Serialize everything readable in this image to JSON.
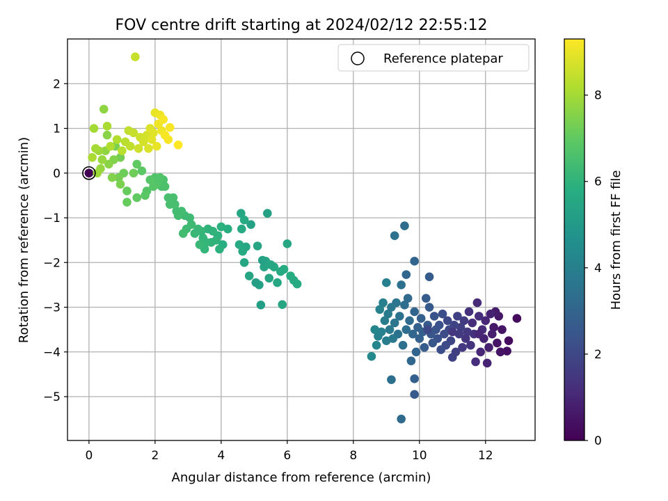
{
  "chart_data": {
    "type": "scatter",
    "title": "FOV centre drift starting at 2024/02/12 22:55:12",
    "xlabel": "Angular distance from reference (arcmin)",
    "ylabel": "Rotation from reference (arcmin)",
    "xlim": [
      -0.65,
      13.5
    ],
    "ylim": [
      -5.98,
      3.0
    ],
    "xticks": [
      0,
      2,
      4,
      6,
      8,
      10,
      12
    ],
    "yticks": [
      -5,
      -4,
      -3,
      -2,
      -1,
      0,
      1,
      2
    ],
    "grid": true,
    "legend": {
      "placement": "top-right",
      "entries": [
        "Reference platepar"
      ]
    },
    "colorbar": {
      "label": "Hours from first FF file",
      "range": [
        0,
        9.3
      ],
      "ticks": [
        0,
        2,
        4,
        6,
        8
      ],
      "colormap": "viridis"
    },
    "reference_point": {
      "x": 0,
      "y": 0
    },
    "point_columns": [
      "x",
      "y",
      "hours"
    ],
    "points": [
      [
        0.0,
        0.0,
        0.0
      ],
      [
        12.95,
        -3.25,
        0.3
      ],
      [
        12.7,
        -3.75,
        0.3
      ],
      [
        12.65,
        -3.98,
        0.4
      ],
      [
        12.5,
        -3.5,
        0.5
      ],
      [
        12.45,
        -4.0,
        0.5
      ],
      [
        12.4,
        -3.2,
        0.6
      ],
      [
        12.35,
        -3.8,
        0.5
      ],
      [
        12.3,
        -3.1,
        0.7
      ],
      [
        12.25,
        -3.45,
        0.6
      ],
      [
        12.2,
        -3.6,
        0.8
      ],
      [
        12.15,
        -3.15,
        0.9
      ],
      [
        12.1,
        -3.9,
        0.8
      ],
      [
        12.05,
        -4.25,
        0.9
      ],
      [
        12.0,
        -3.3,
        1.0
      ],
      [
        11.95,
        -3.7,
        0.9
      ],
      [
        11.9,
        -3.5,
        1.1
      ],
      [
        11.85,
        -4.0,
        1.0
      ],
      [
        11.8,
        -3.2,
        1.2
      ],
      [
        11.75,
        -2.9,
        1.1
      ],
      [
        11.7,
        -4.22,
        1.2
      ],
      [
        11.65,
        -3.6,
        1.3
      ],
      [
        11.6,
        -3.35,
        1.2
      ],
      [
        11.55,
        -3.85,
        1.4
      ],
      [
        11.5,
        -3.1,
        1.3
      ],
      [
        11.45,
        -3.55,
        1.5
      ],
      [
        11.4,
        -3.7,
        1.4
      ],
      [
        11.35,
        -3.3,
        1.6
      ],
      [
        11.3,
        -3.9,
        1.5
      ],
      [
        11.25,
        -3.45,
        1.7
      ],
      [
        11.2,
        -3.6,
        1.6
      ],
      [
        11.15,
        -3.2,
        1.8
      ],
      [
        11.1,
        -4.0,
        1.7
      ],
      [
        11.05,
        -3.4,
        1.9
      ],
      [
        11.0,
        -4.12,
        1.8
      ],
      [
        10.95,
        -3.75,
        1.9
      ],
      [
        10.9,
        -3.5,
        2.0
      ],
      [
        10.85,
        -3.3,
        2.0
      ],
      [
        10.8,
        -3.85,
        2.1
      ],
      [
        10.75,
        -3.6,
        2.1
      ],
      [
        10.7,
        -3.15,
        2.2
      ],
      [
        10.65,
        -3.95,
        2.2
      ],
      [
        10.6,
        -3.4,
        2.3
      ],
      [
        10.55,
        -3.7,
        2.3
      ],
      [
        10.5,
        -3.5,
        2.4
      ],
      [
        10.45,
        -3.2,
        2.4
      ],
      [
        10.4,
        -3.8,
        2.5
      ],
      [
        10.35,
        -3.6,
        2.5
      ],
      [
        10.3,
        -3.0,
        2.6
      ],
      [
        10.25,
        -3.4,
        2.6
      ],
      [
        10.2,
        -2.8,
        2.7
      ],
      [
        10.15,
        -3.9,
        2.7
      ],
      [
        10.1,
        -3.55,
        2.8
      ],
      [
        10.05,
        -3.25,
        2.8
      ],
      [
        10.0,
        -3.7,
        2.9
      ],
      [
        9.95,
        -3.45,
        2.9
      ],
      [
        9.9,
        -4.0,
        3.0
      ],
      [
        9.85,
        -3.1,
        3.0
      ],
      [
        9.8,
        -3.6,
        3.1
      ],
      [
        9.75,
        -4.2,
        3.1
      ],
      [
        9.7,
        -3.3,
        3.2
      ],
      [
        9.65,
        -2.8,
        3.2
      ],
      [
        9.6,
        -3.5,
        3.3
      ],
      [
        9.55,
        -2.95,
        3.3
      ],
      [
        9.5,
        -3.85,
        3.4
      ],
      [
        9.45,
        -2.5,
        3.4
      ],
      [
        9.4,
        -3.2,
        3.5
      ],
      [
        9.35,
        -3.6,
        3.5
      ],
      [
        9.3,
        -2.9,
        3.6
      ],
      [
        9.25,
        -3.35,
        3.6
      ],
      [
        9.2,
        -3.7,
        3.7
      ],
      [
        9.15,
        -3.0,
        3.7
      ],
      [
        9.1,
        -3.5,
        3.8
      ],
      [
        9.05,
        -3.15,
        3.8
      ],
      [
        9.0,
        -3.75,
        3.9
      ],
      [
        8.95,
        -3.3,
        3.9
      ],
      [
        8.9,
        -2.9,
        4.0
      ],
      [
        8.85,
        -3.55,
        4.0
      ],
      [
        8.8,
        -3.05,
        4.1
      ],
      [
        8.75,
        -3.65,
        4.1
      ],
      [
        8.7,
        -3.85,
        4.2
      ],
      [
        8.65,
        -3.5,
        4.2
      ],
      [
        8.55,
        -4.1,
        4.3
      ],
      [
        9.0,
        -2.45,
        4.0
      ],
      [
        9.25,
        -1.4,
        3.5
      ],
      [
        9.55,
        -1.18,
        3.3
      ],
      [
        9.85,
        -1.97,
        3.0
      ],
      [
        9.85,
        -4.6,
        2.8
      ],
      [
        9.85,
        -4.95,
        2.6
      ],
      [
        9.45,
        -5.5,
        3.2
      ],
      [
        9.15,
        -4.62,
        3.4
      ],
      [
        10.3,
        -2.32,
        2.7
      ],
      [
        9.6,
        -2.27,
        3.1
      ],
      [
        10.25,
        -3.5,
        2.0
      ],
      [
        11.0,
        -3.55,
        1.5
      ],
      [
        11.8,
        -3.6,
        1.0
      ],
      [
        6.3,
        -2.48,
        5.6
      ],
      [
        6.2,
        -2.4,
        5.6
      ],
      [
        6.1,
        -2.3,
        5.7
      ],
      [
        6.0,
        -1.58,
        5.5
      ],
      [
        5.9,
        -2.15,
        5.7
      ],
      [
        5.85,
        -2.94,
        5.4
      ],
      [
        5.8,
        -2.2,
        5.6
      ],
      [
        5.7,
        -2.45,
        5.5
      ],
      [
        5.6,
        -2.1,
        5.6
      ],
      [
        5.5,
        -2.05,
        5.5
      ],
      [
        5.45,
        -2.35,
        5.4
      ],
      [
        5.4,
        -0.9,
        5.3
      ],
      [
        5.35,
        -1.97,
        5.5
      ],
      [
        5.3,
        -2.1,
        5.4
      ],
      [
        5.25,
        -1.95,
        5.3
      ],
      [
        5.2,
        -2.95,
        5.2
      ],
      [
        5.15,
        -2.5,
        5.3
      ],
      [
        5.1,
        -1.63,
        5.4
      ],
      [
        5.05,
        -2.45,
        5.2
      ],
      [
        4.9,
        -1.15,
        5.3
      ],
      [
        4.85,
        -2.3,
        5.4
      ],
      [
        4.75,
        -1.65,
        5.5
      ],
      [
        4.7,
        -2.0,
        5.5
      ],
      [
        4.65,
        -1.75,
        5.6
      ],
      [
        4.6,
        -0.9,
        5.5
      ],
      [
        4.55,
        -1.6,
        5.6
      ],
      [
        4.62,
        -1.25,
        5.6
      ],
      [
        4.7,
        -1.05,
        5.6
      ],
      [
        4.2,
        -1.25,
        5.8
      ],
      [
        4.05,
        -1.6,
        5.8
      ],
      [
        4.0,
        -1.2,
        5.9
      ],
      [
        3.95,
        -1.7,
        5.9
      ],
      [
        3.9,
        -1.4,
        5.9
      ],
      [
        3.85,
        -1.5,
        6.0
      ],
      [
        3.75,
        -1.3,
        6.0
      ],
      [
        3.7,
        -1.55,
        6.0
      ],
      [
        3.6,
        -1.25,
        6.0
      ],
      [
        3.55,
        -1.55,
        6.1
      ],
      [
        3.5,
        -1.7,
        6.1
      ],
      [
        3.45,
        -1.45,
        6.1
      ],
      [
        3.4,
        -1.3,
        6.1
      ],
      [
        3.35,
        -1.6,
        6.2
      ],
      [
        3.3,
        -1.25,
        6.2
      ],
      [
        3.2,
        -1.35,
        6.2
      ],
      [
        3.1,
        -1.15,
        6.3
      ],
      [
        3.05,
        -1.0,
        6.3
      ],
      [
        2.95,
        -1.25,
        6.3
      ],
      [
        2.9,
        -0.95,
        6.3
      ],
      [
        2.85,
        -1.35,
        6.4
      ],
      [
        2.8,
        -0.85,
        6.4
      ],
      [
        2.7,
        -0.95,
        6.4
      ],
      [
        2.65,
        -0.85,
        6.4
      ],
      [
        2.6,
        -0.7,
        6.5
      ],
      [
        2.55,
        -0.55,
        6.5
      ],
      [
        2.45,
        -0.7,
        6.5
      ],
      [
        2.4,
        -0.55,
        6.5
      ],
      [
        2.3,
        -0.3,
        6.6
      ],
      [
        2.25,
        -0.15,
        6.6
      ],
      [
        2.2,
        -0.3,
        6.6
      ],
      [
        2.15,
        -0.1,
        6.7
      ],
      [
        2.05,
        -0.25,
        6.7
      ],
      [
        2.0,
        -0.1,
        6.7
      ],
      [
        1.95,
        -0.3,
        6.8
      ],
      [
        1.85,
        -0.15,
        6.8
      ],
      [
        1.75,
        -0.4,
        6.8
      ],
      [
        1.7,
        -0.5,
        6.9
      ],
      [
        1.6,
        0.05,
        6.9
      ],
      [
        1.45,
        0.2,
        7.0
      ],
      [
        1.45,
        -0.55,
        7.0
      ],
      [
        1.15,
        -0.65,
        7.1
      ],
      [
        1.15,
        -0.4,
        7.1
      ],
      [
        1.35,
        0.0,
        7.2
      ],
      [
        1.05,
        0.0,
        7.2
      ],
      [
        0.95,
        0.35,
        7.3
      ],
      [
        0.9,
        -0.1,
        7.3
      ],
      [
        0.95,
        -0.25,
        7.4
      ],
      [
        0.8,
        0.6,
        7.4
      ],
      [
        0.75,
        0.3,
        7.5
      ],
      [
        0.7,
        -0.1,
        7.5
      ],
      [
        0.6,
        0.2,
        7.6
      ],
      [
        0.55,
        0.85,
        7.6
      ],
      [
        0.5,
        0.5,
        7.7
      ],
      [
        0.45,
        1.43,
        7.7
      ],
      [
        0.4,
        0.3,
        7.8
      ],
      [
        0.35,
        0.1,
        7.8
      ],
      [
        0.3,
        0.5,
        7.9
      ],
      [
        0.25,
        0.0,
        7.9
      ],
      [
        0.2,
        0.55,
        8.0
      ],
      [
        0.15,
        1.0,
        8.0
      ],
      [
        0.1,
        0.35,
        8.1
      ],
      [
        0.55,
        1.05,
        8.1
      ],
      [
        0.65,
        0.6,
        8.2
      ],
      [
        0.85,
        0.75,
        8.2
      ],
      [
        1.0,
        0.5,
        8.3
      ],
      [
        1.1,
        0.7,
        8.3
      ],
      [
        1.2,
        0.95,
        8.4
      ],
      [
        1.25,
        0.6,
        8.4
      ],
      [
        1.35,
        0.9,
        8.5
      ],
      [
        1.4,
        2.6,
        8.5
      ],
      [
        1.5,
        0.55,
        8.6
      ],
      [
        1.55,
        0.8,
        8.6
      ],
      [
        1.65,
        0.7,
        8.7
      ],
      [
        1.75,
        0.85,
        8.7
      ],
      [
        1.8,
        0.55,
        8.8
      ],
      [
        1.85,
        1.0,
        8.8
      ],
      [
        1.9,
        0.75,
        8.9
      ],
      [
        1.95,
        0.9,
        8.9
      ],
      [
        2.0,
        1.35,
        9.0
      ],
      [
        2.05,
        0.6,
        9.0
      ],
      [
        2.1,
        1.1,
        9.1
      ],
      [
        2.15,
        1.3,
        9.1
      ],
      [
        2.2,
        0.95,
        9.1
      ],
      [
        2.3,
        0.85,
        9.2
      ],
      [
        2.4,
        0.75,
        9.2
      ],
      [
        2.45,
        1.02,
        9.2
      ],
      [
        2.7,
        0.63,
        9.3
      ],
      [
        2.25,
        1.2,
        9.2
      ]
    ]
  }
}
